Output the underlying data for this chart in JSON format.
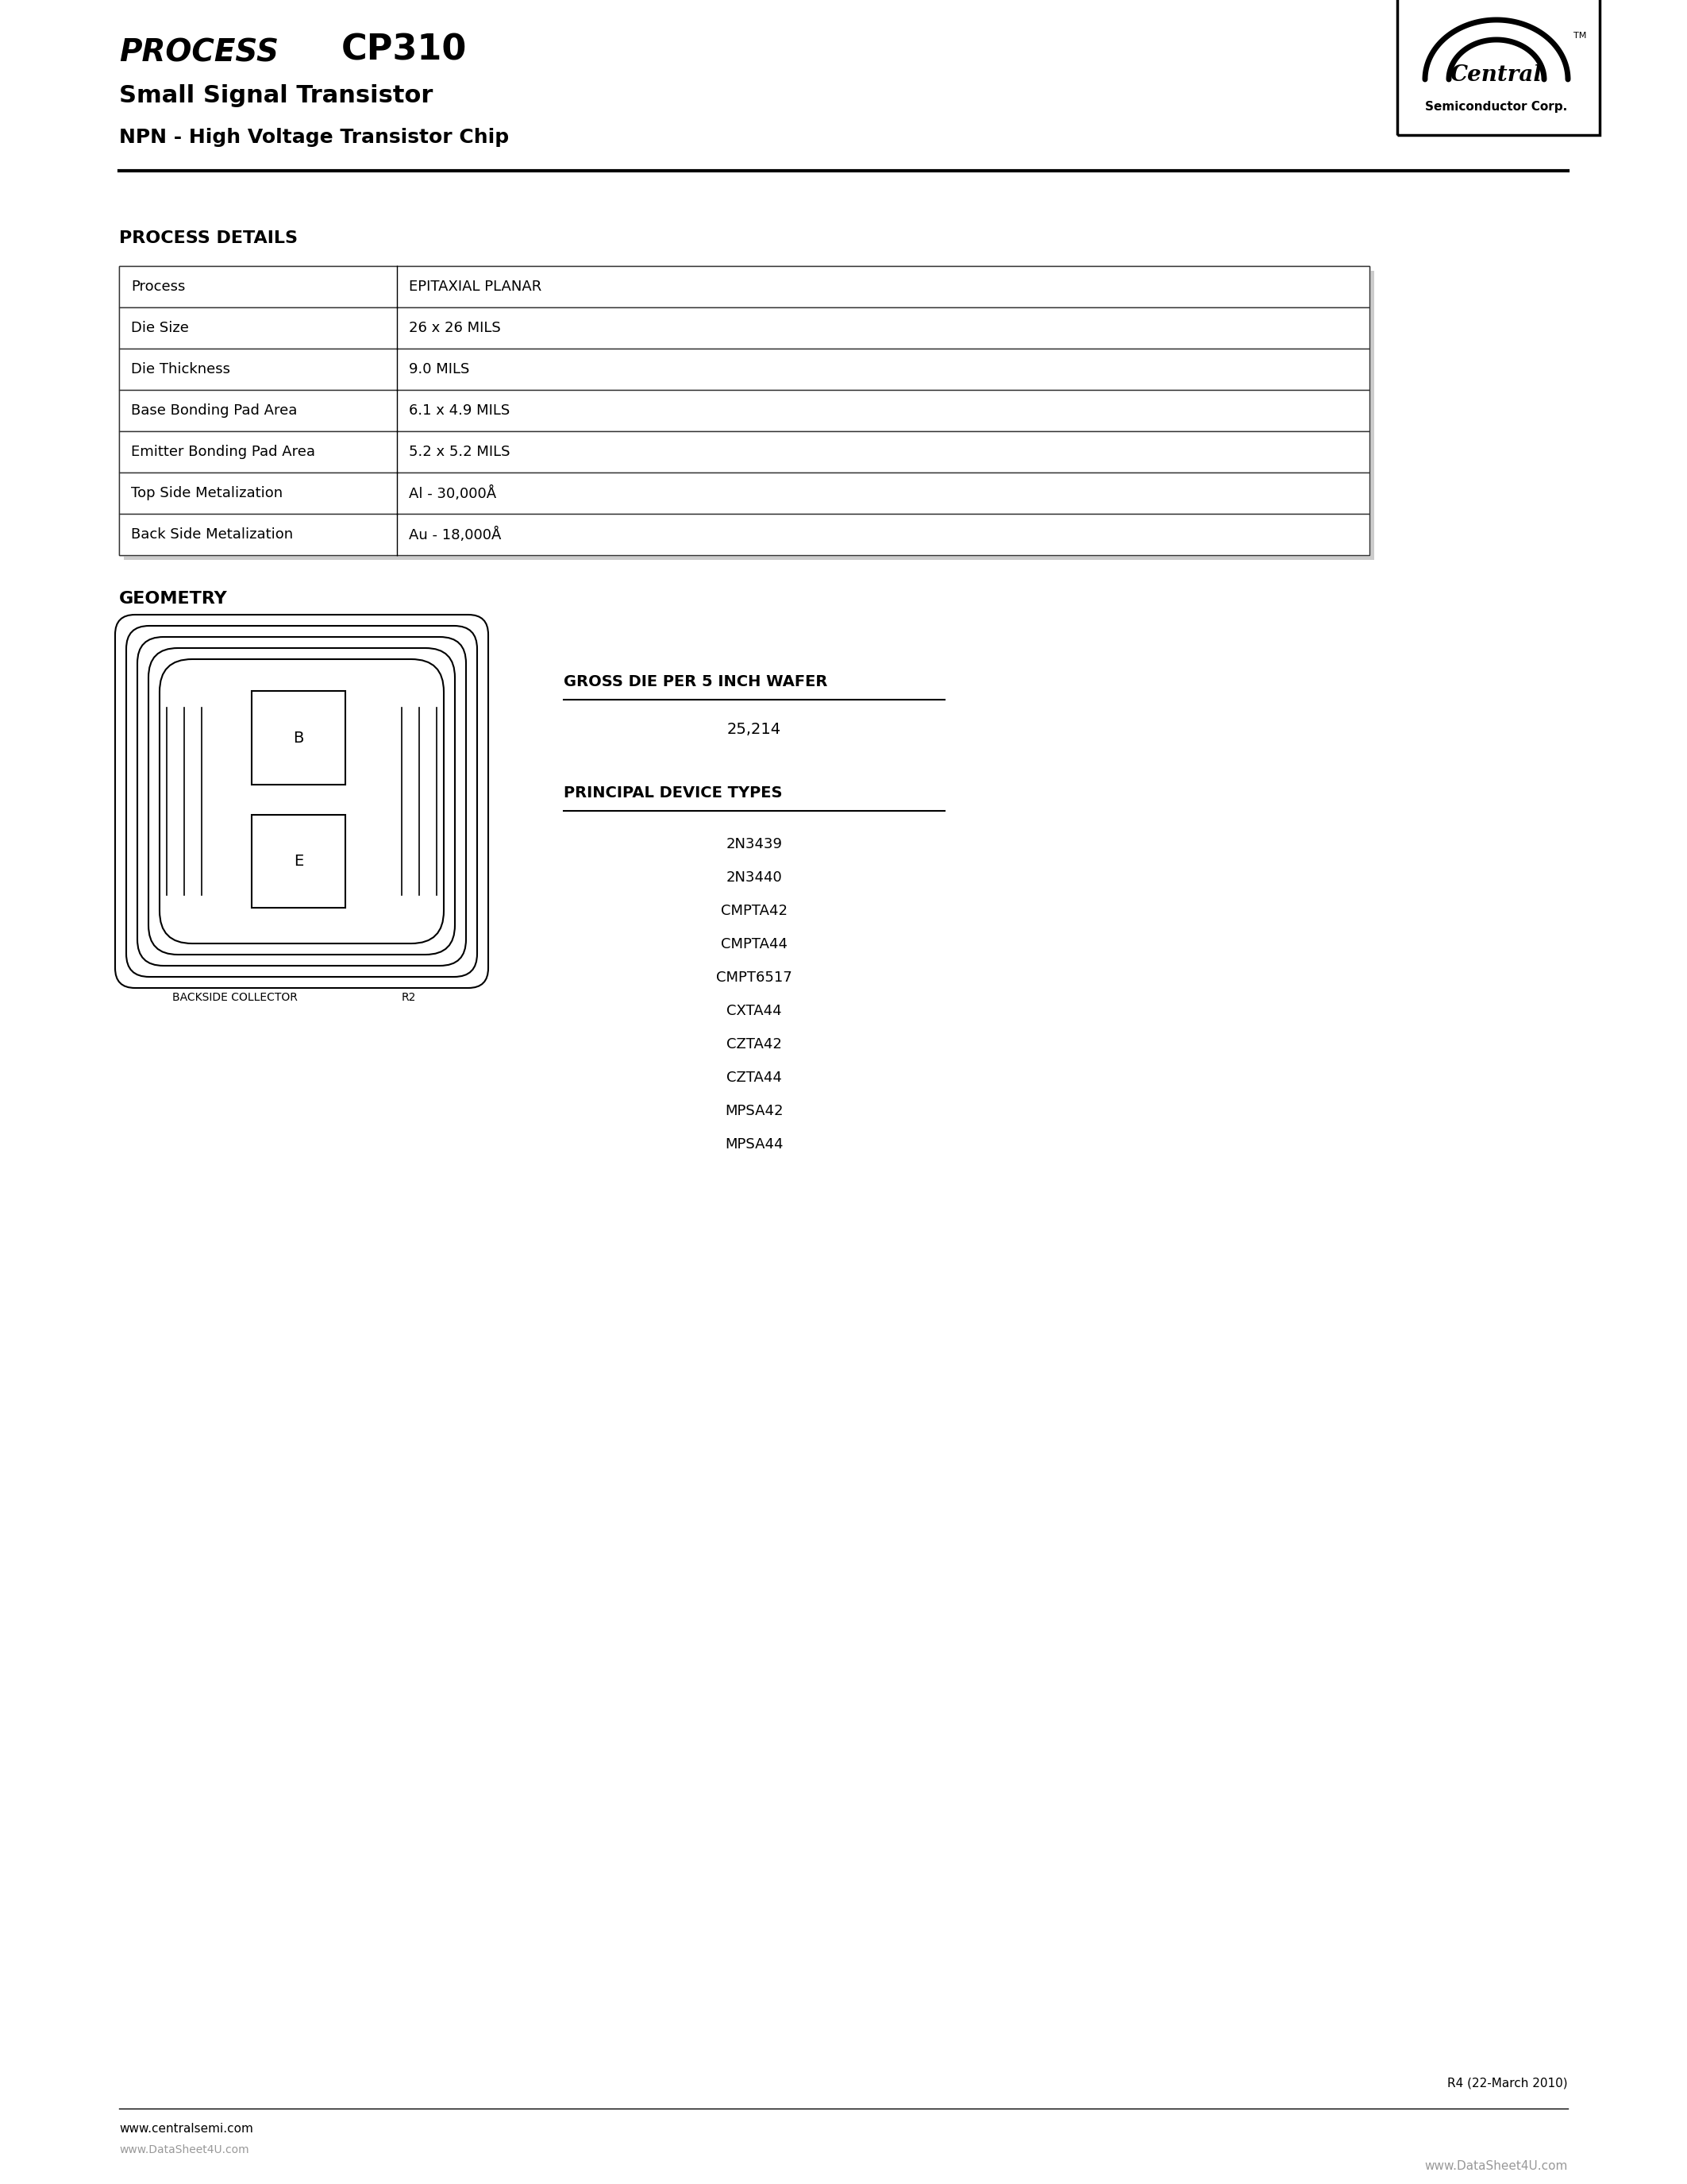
{
  "page_width": 21.25,
  "page_height": 27.5,
  "bg_color": "#ffffff",
  "header": {
    "process_text": "PROCESS",
    "cp310_text": "CP310",
    "subtitle1": "Small Signal Transistor",
    "subtitle2": "NPN - High Voltage Transistor Chip"
  },
  "table_title": "PROCESS DETAILS",
  "table_rows": [
    [
      "Process",
      "EPITAXIAL PLANAR"
    ],
    [
      "Die Size",
      "26 x 26 MILS"
    ],
    [
      "Die Thickness",
      "9.0 MILS"
    ],
    [
      "Base Bonding Pad Area",
      "6.1 x 4.9 MILS"
    ],
    [
      "Emitter Bonding Pad Area",
      "5.2 x 5.2 MILS"
    ],
    [
      "Top Side Metalization",
      "Al - 30,000Å"
    ],
    [
      "Back Side Metalization",
      "Au - 18,000Å"
    ]
  ],
  "geometry_title": "GEOMETRY",
  "gross_die_title": "GROSS DIE PER 5 INCH WAFER",
  "gross_die_value": "25,214",
  "principal_title": "PRINCIPAL DEVICE TYPES",
  "device_types": [
    "2N3439",
    "2N3440",
    "CMPTA42",
    "CMPTA44",
    "CMPT6517",
    "CXTA44",
    "CZTA42",
    "CZTA44",
    "MPSA42",
    "MPSA44"
  ],
  "backside_label": "BACKSIDE COLLECTOR",
  "r2_label": "R2",
  "footer_url": "www.centralsemi.com",
  "footer_watermark": "www.DataSheet4U.com",
  "bottom_right_text": "www.DataSheet4U.com",
  "revision_text": "R4 (22-March 2010)"
}
